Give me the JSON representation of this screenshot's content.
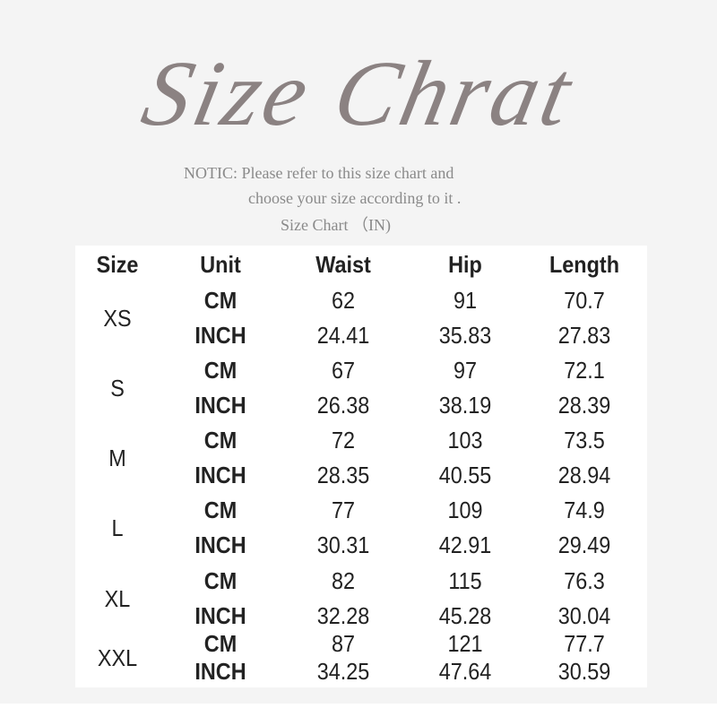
{
  "title": "Size Chrat",
  "notice": {
    "line1": "NOTIC: Please refer to this size chart and",
    "line2": "choose your size according to it .",
    "line3": "Size Chart （IN)"
  },
  "table": {
    "headers": [
      "Size",
      "Unit",
      "Waist",
      "Hip",
      "Length"
    ],
    "rows": [
      {
        "size": "XS",
        "cm": [
          "CM",
          "62",
          "91",
          "70.7"
        ],
        "inch": [
          "INCH",
          "24.41",
          "35.83",
          "27.83"
        ]
      },
      {
        "size": "S",
        "cm": [
          "CM",
          "67",
          "97",
          "72.1"
        ],
        "inch": [
          "INCH",
          "26.38",
          "38.19",
          "28.39"
        ]
      },
      {
        "size": "M",
        "cm": [
          "CM",
          "72",
          "103",
          "73.5"
        ],
        "inch": [
          "INCH",
          "28.35",
          "40.55",
          "28.94"
        ]
      },
      {
        "size": "L",
        "cm": [
          "CM",
          "77",
          "109",
          "74.9"
        ],
        "inch": [
          "INCH",
          "30.31",
          "42.91",
          "29.49"
        ]
      },
      {
        "size": "XL",
        "cm": [
          "CM",
          "82",
          "115",
          "76.3"
        ],
        "inch": [
          "INCH",
          "32.28",
          "45.28",
          "30.04"
        ]
      },
      {
        "size": "XXL",
        "cm": [
          "CM",
          "87",
          "121",
          "77.7"
        ],
        "inch": [
          "INCH",
          "34.25",
          "47.64",
          "30.59"
        ]
      }
    ]
  }
}
